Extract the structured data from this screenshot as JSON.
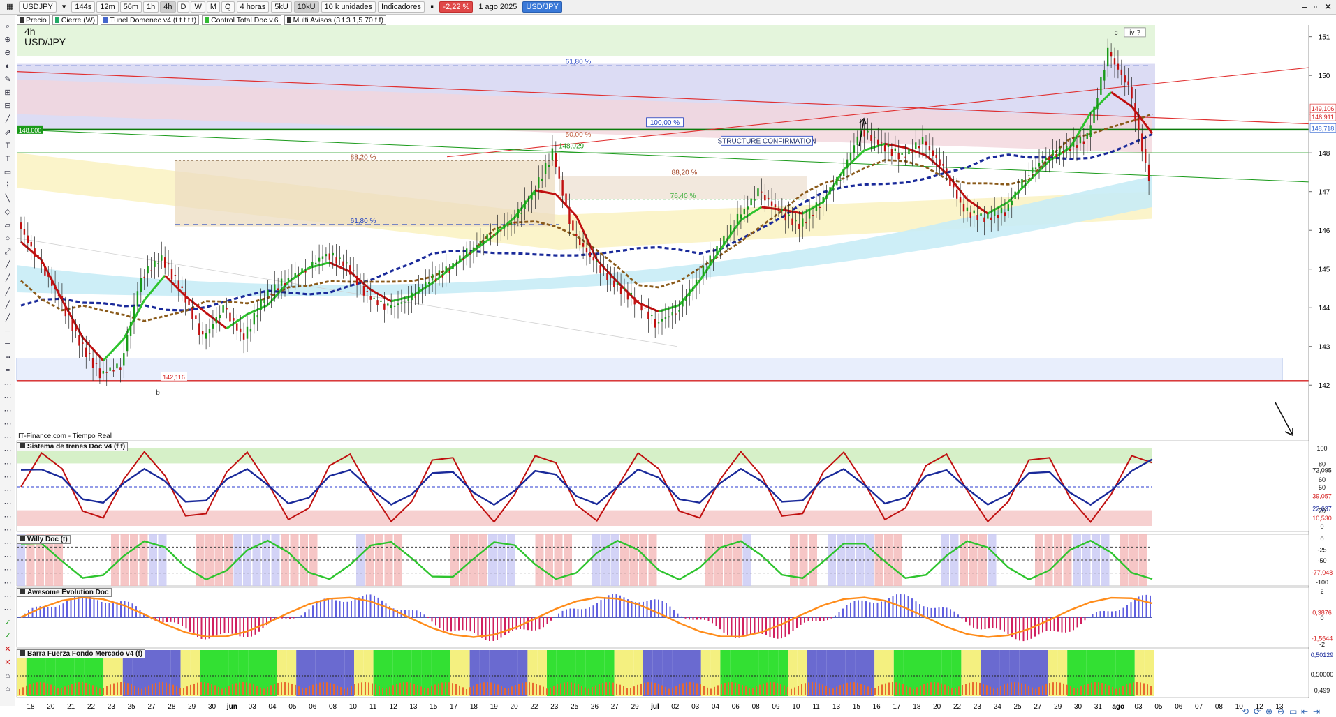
{
  "toolbar": {
    "symbol": "USDJPY",
    "timeframes": [
      "144s",
      "12m",
      "56m",
      "1h",
      "4h",
      "D",
      "W",
      "M",
      "Q"
    ],
    "active_timeframe": "4h",
    "interval": "4 horas",
    "units_a": "5kU",
    "units_b": "10kU",
    "units_c": "10 k unidades",
    "indicators": "Indicadores",
    "change": "-2,22 %",
    "date": "1 ago 2025",
    "pair": "USD/JPY"
  },
  "indicator_bar": [
    "Precio",
    "Cierre (W)",
    "Tunel Domenec v4 (t t t t t)",
    "Control Total Doc v.6",
    "Multi Avisos (3 f 3 1,5 70 f f)"
  ],
  "chart": {
    "timeframe": "4h",
    "pair": "USD/JPY",
    "source": "IT-Finance.com - Tiempo Real",
    "annotations": {
      "fib_6180_top": "61,80 %",
      "fib_100": "100,00 %",
      "fib_5000": "50,00 %",
      "fib_8820_a": "88,20 %",
      "fib_8820_b": "88,20 %",
      "fib_7640": "76,40 %",
      "fib_6180_mid": "61,80 %",
      "level_148029": "148,029",
      "level_148600": "148,600",
      "level_142116": "142,116",
      "structure": "STRUCTURE CONFIRMATION",
      "wave_c": "c",
      "wave_iv": "iv ?",
      "wave_b": "b"
    },
    "price_axis": [
      "151",
      "150",
      "149",
      "148",
      "147",
      "146",
      "145",
      "144",
      "143",
      "142"
    ],
    "price_tags": [
      {
        "text": "149,106",
        "color": "#d62020"
      },
      {
        "text": "148,911",
        "color": "#d62020"
      },
      {
        "text": "148,718",
        "color": "#2a5fd0"
      }
    ]
  },
  "chart_data": {
    "type": "line",
    "title": "USD/JPY",
    "ylim": [
      141.5,
      151.3
    ],
    "x_labels": [
      "18",
      "20",
      "21",
      "22",
      "23",
      "25",
      "27",
      "28",
      "29",
      "30",
      "jun",
      "03",
      "04",
      "05",
      "06",
      "08",
      "10",
      "11",
      "12",
      "13",
      "15",
      "17",
      "18",
      "19",
      "20",
      "22",
      "23",
      "25",
      "26",
      "27",
      "29",
      "jul",
      "02",
      "03",
      "04",
      "06",
      "08",
      "09",
      "10",
      "11",
      "13",
      "15",
      "16",
      "17",
      "18",
      "20",
      "22",
      "23",
      "24",
      "25",
      "27",
      "29",
      "30",
      "31",
      "ago",
      "03",
      "05",
      "06",
      "07",
      "08",
      "10",
      "12",
      "13"
    ],
    "series": [
      {
        "values": [
          146.2,
          145.2,
          144.3,
          143.1,
          142.3,
          142.5,
          144.8,
          145.3,
          144.4,
          143.2,
          144.0,
          143.2,
          144.3,
          144.7,
          145.0,
          145.4,
          145.1,
          144.3,
          144.0,
          144.2,
          144.7,
          145.0,
          145.5,
          145.9,
          146.2,
          146.9,
          148.0,
          145.9,
          145.2,
          144.6,
          144.2,
          143.6,
          143.9,
          144.7,
          145.5,
          146.3,
          147.0,
          146.5,
          146.1,
          146.7,
          147.4,
          148.6,
          148.2,
          147.9,
          148.3,
          147.6,
          146.5,
          146.3,
          146.5,
          147.4,
          147.9,
          148.1,
          148.4,
          150.6,
          149.7,
          147.3
        ]
      }
    ],
    "levels": [
      148.6,
      148.029,
      142.116
    ]
  },
  "panels": {
    "trenes": {
      "title": "Sistema de trenes Doc v4 (f f)",
      "axis": [
        "100",
        "80",
        "72,095",
        "60",
        "50",
        "39,057",
        "22,637",
        "20",
        "10,530",
        "0"
      ]
    },
    "willy": {
      "title": "Willy Doc (t)",
      "axis": [
        "0",
        "-25",
        "-50",
        "-77,048",
        "-100"
      ]
    },
    "awesome": {
      "title": "Awesome Evolution Doc",
      "axis": [
        "2",
        "0,3876",
        "0",
        "-1,5644",
        "-2"
      ]
    },
    "barra": {
      "title": "Barra Fuerza Fondo Mercado v4 (f)",
      "axis": [
        "0,50129",
        "0,50000",
        "0,499"
      ]
    }
  },
  "colors": {
    "up": "#1a9a1a",
    "down": "#c01010",
    "accent": "#d62020",
    "blue": "#1a2a9a"
  }
}
